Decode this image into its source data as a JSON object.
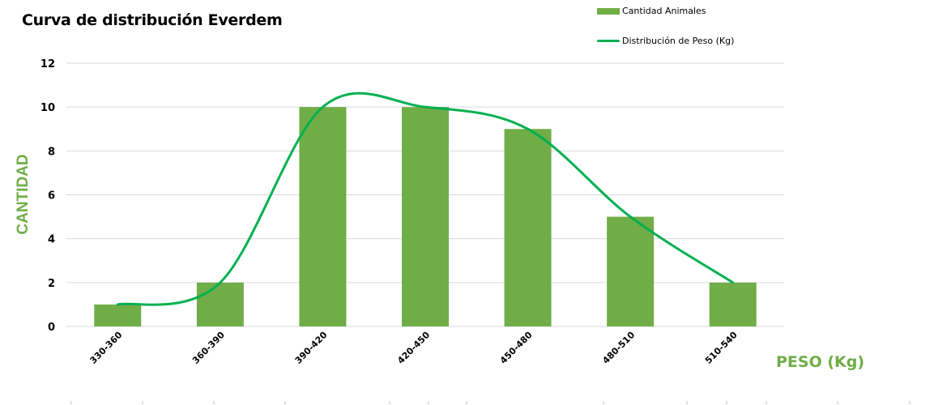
{
  "chart_data": {
    "type": "bar",
    "title": "Curva de distribución Everdem",
    "xlabel": "PESO (Kg)",
    "ylabel": "CANTIDAD",
    "ylim": [
      0,
      12
    ],
    "yticks": [
      0,
      2,
      4,
      6,
      8,
      10,
      12
    ],
    "grid": true,
    "legend_position": "top-right",
    "categories": [
      "330-360",
      "360-390",
      "390-420",
      "420-450",
      "450-480",
      "480-510",
      "510-540"
    ],
    "series": [
      {
        "name": "Cantidad Animales",
        "type": "bar",
        "color": "#70AD47",
        "values": [
          1,
          2,
          10,
          10,
          9,
          5,
          2
        ]
      },
      {
        "name": "Distribución de Peso (Kg)",
        "type": "line",
        "smooth": true,
        "color": "#00B050",
        "values": [
          1,
          2,
          10,
          10,
          9,
          5,
          2
        ]
      }
    ]
  },
  "title": "Curva de distribución Everdem",
  "legend": {
    "bar_label": "Cantidad Animales",
    "line_label": "Distribución de Peso (Kg)"
  },
  "axes": {
    "ylabel": "CANTIDAD",
    "xlabel": "PESO (Kg)",
    "yticks": [
      "0",
      "2",
      "4",
      "6",
      "8",
      "10",
      "12"
    ],
    "xticks": [
      "330-360",
      "360-390",
      "390-420",
      "420-450",
      "450-480",
      "480-510",
      "510-540"
    ]
  },
  "colors": {
    "bar": "#70AD47",
    "line": "#00B050",
    "axis_title": "#70AD47",
    "grid": "#D9D9D9"
  }
}
